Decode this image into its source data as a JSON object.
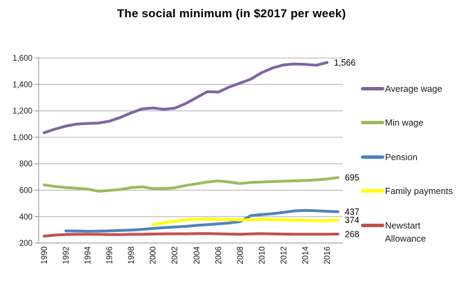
{
  "title": "The social minimum (in $2017 per week)",
  "chart_data": {
    "type": "line",
    "title": "The social minimum (in $2017 per week)",
    "unit": "$2017 per week",
    "grid": true,
    "legend_position": "right",
    "ylim": [
      200,
      1600
    ],
    "ytick_step": 200,
    "y_tick_labels": [
      "200",
      "400",
      "600",
      "800",
      "1,000",
      "1,200",
      "1,400",
      "1,600"
    ],
    "x": [
      1990,
      1991,
      1992,
      1993,
      1994,
      1995,
      1996,
      1997,
      1998,
      1999,
      2000,
      2001,
      2002,
      2003,
      2004,
      2005,
      2006,
      2007,
      2008,
      2009,
      2010,
      2011,
      2012,
      2013,
      2014,
      2015,
      2016,
      2017
    ],
    "x_tick_labels": [
      "1990",
      "1992",
      "1994",
      "1996",
      "1998",
      "2000",
      "2002",
      "2004",
      "2006",
      "2008",
      "2010",
      "2012",
      "2014",
      "2016"
    ],
    "series": [
      {
        "name": "Average wage",
        "legend_label": "Average wage",
        "color": "#8064A2",
        "end_label": "1,566",
        "values": [
          1035,
          1062,
          1085,
          1100,
          1105,
          1108,
          1122,
          1150,
          1185,
          1215,
          1222,
          1212,
          1220,
          1255,
          1300,
          1345,
          1342,
          1380,
          1410,
          1440,
          1490,
          1525,
          1548,
          1555,
          1552,
          1545,
          1566,
          null
        ]
      },
      {
        "name": "Min wage",
        "legend_label": "Min wage",
        "color": "#9BBB59",
        "end_label": "695",
        "values": [
          640,
          628,
          620,
          615,
          608,
          592,
          598,
          605,
          620,
          625,
          612,
          612,
          618,
          635,
          648,
          662,
          670,
          662,
          650,
          658,
          662,
          665,
          668,
          670,
          673,
          678,
          685,
          695
        ]
      },
      {
        "name": "Pension",
        "legend_label": "Pension",
        "color": "#4F81BD",
        "end_label": "437",
        "values": [
          null,
          null,
          292,
          291,
          289,
          290,
          292,
          295,
          298,
          303,
          310,
          316,
          321,
          326,
          333,
          339,
          345,
          352,
          362,
          408,
          416,
          422,
          432,
          443,
          447,
          444,
          440,
          437
        ]
      },
      {
        "name": "Family payments",
        "legend_label": "Family payments",
        "color": "#FFFF00",
        "end_label": "374",
        "values": [
          null,
          null,
          null,
          null,
          null,
          null,
          null,
          null,
          null,
          null,
          340,
          352,
          365,
          374,
          380,
          381,
          378,
          379,
          374,
          377,
          379,
          377,
          375,
          373,
          371,
          368,
          369,
          374
        ]
      },
      {
        "name": "Newstart Allowance",
        "legend_label": "Newstart\nAllowance",
        "color": "#C0504D",
        "end_label": "268",
        "values": [
          252,
          260,
          265,
          266,
          266,
          266,
          264,
          264,
          266,
          266,
          268,
          269,
          270,
          270,
          271,
          272,
          270,
          268,
          266,
          269,
          271,
          269,
          268,
          267,
          267,
          267,
          267,
          268
        ]
      }
    ],
    "colors": {
      "gridline": "#ADADAD",
      "axis": "#8C8C8C",
      "tick_text": "#1a1a1a",
      "end_label_text": "#000000"
    }
  }
}
